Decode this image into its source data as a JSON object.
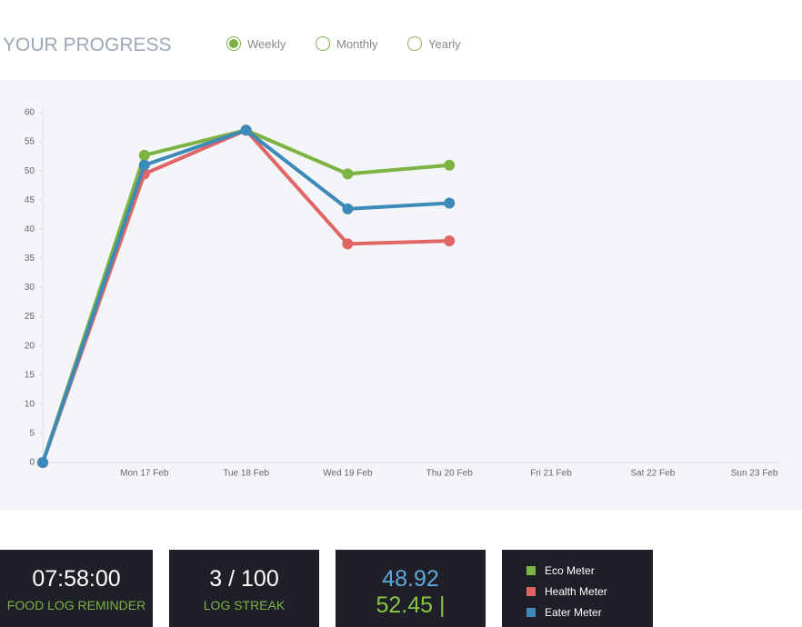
{
  "header": {
    "title": "YOUR PROGRESS",
    "options": [
      {
        "label": "Weekly",
        "selected": true
      },
      {
        "label": "Monthly",
        "selected": false
      },
      {
        "label": "Yearly",
        "selected": false
      }
    ]
  },
  "chart_data": {
    "type": "line",
    "categories": [
      null,
      "Mon 17 Feb",
      "Tue 18 Feb",
      "Wed 19 Feb",
      "Thu 20 Feb",
      "Fri 21 Feb",
      "Sat 22 Feb",
      "Sun 23 Feb"
    ],
    "series": [
      {
        "name": "Eco Meter",
        "color": "#7cb342",
        "values": [
          0,
          52.7,
          57,
          49.5,
          51,
          null,
          null,
          null
        ]
      },
      {
        "name": "Health Meter",
        "color": "#e06666",
        "values": [
          0,
          49.5,
          57,
          37.5,
          38,
          null,
          null,
          null
        ]
      },
      {
        "name": "Eater Meter",
        "color": "#3d8ab8",
        "values": [
          0,
          51,
          57,
          43.5,
          44.5,
          null,
          null,
          null
        ]
      }
    ],
    "ylim": [
      0,
      60
    ],
    "yticks": [
      0,
      5,
      10,
      15,
      20,
      25,
      30,
      35,
      40,
      45,
      50,
      55,
      60
    ]
  },
  "cards": [
    {
      "value": "07:58:00",
      "label": "FOOD LOG REMINDER"
    },
    {
      "value": "3 / 100",
      "label": "LOG STREAK"
    },
    {
      "value": "48.92",
      "label": "52.45 |"
    }
  ]
}
